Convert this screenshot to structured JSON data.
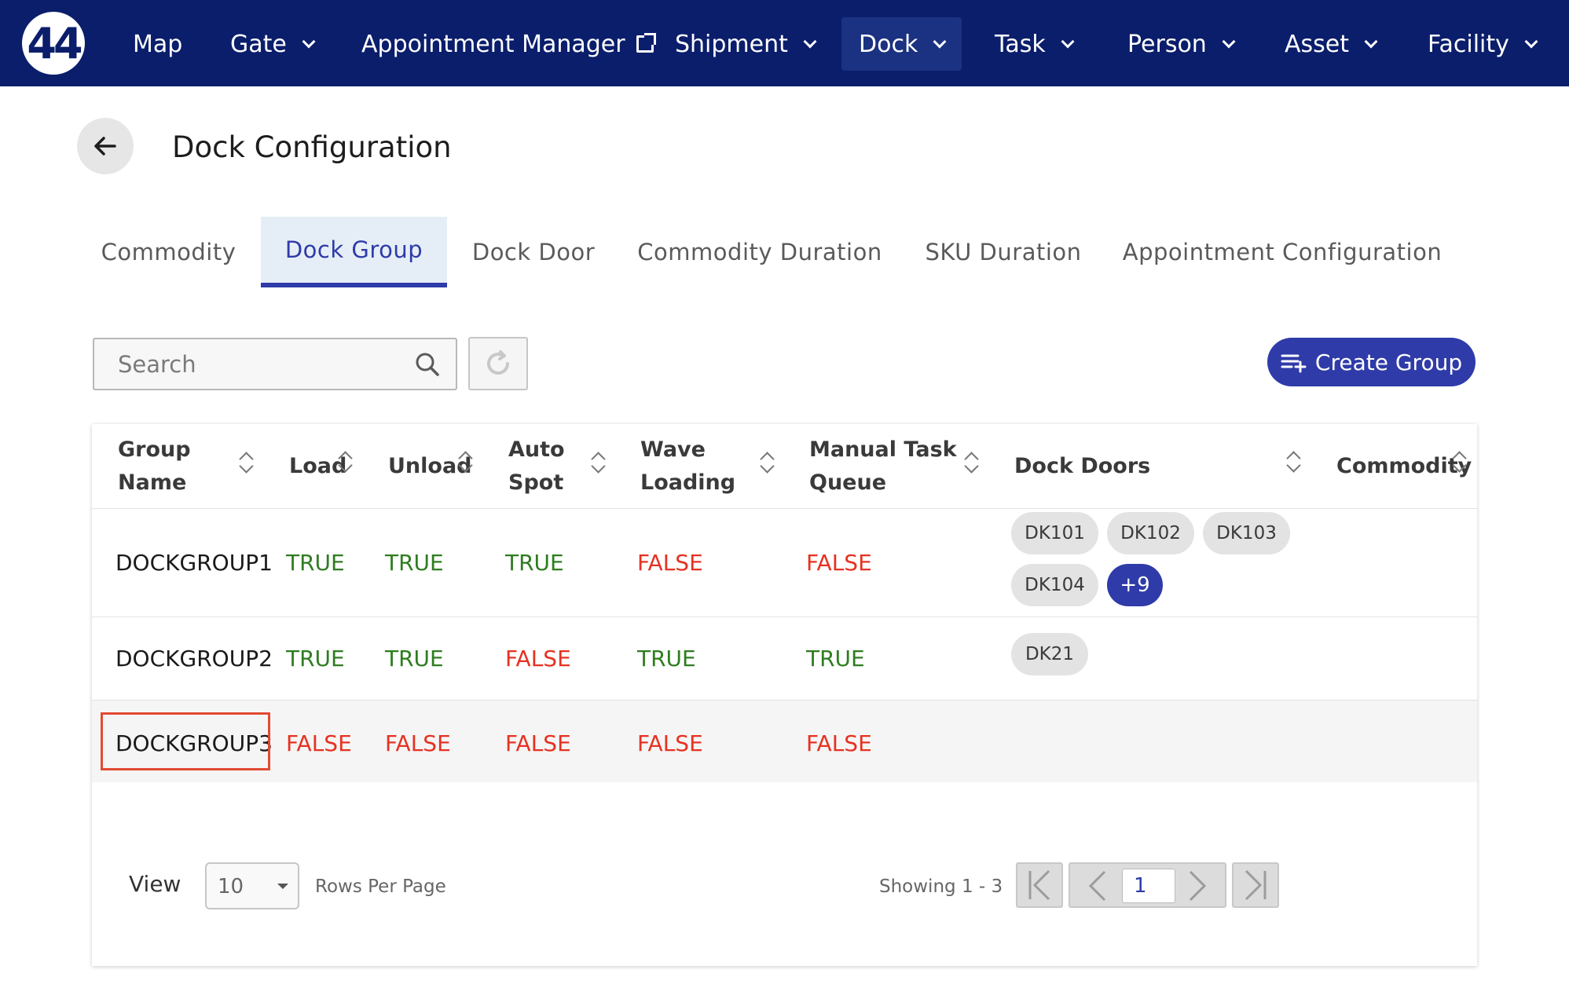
{
  "logo": {
    "text": "44"
  },
  "nav": {
    "map": "Map",
    "gate": "Gate",
    "appointment_manager": "Appointment Manager",
    "shipment": "Shipment",
    "dock": "Dock",
    "task": "Task",
    "person": "Person",
    "asset": "Asset",
    "facility": "Facility"
  },
  "header": {
    "title": "Dock Configuration"
  },
  "tabs": {
    "commodity": "Commodity",
    "dock_group": "Dock Group",
    "dock_door": "Dock Door",
    "commodity_duration": "Commodity Duration",
    "sku_duration": "SKU Duration",
    "appointment_configuration": "Appointment Configuration"
  },
  "search": {
    "placeholder": "Search"
  },
  "toolbar": {
    "create_group": "Create Group"
  },
  "table": {
    "headers": {
      "group_name_1": "Group",
      "group_name_2": "Name",
      "load": "Load",
      "unload": "Unload",
      "auto_spot_1": "Auto",
      "auto_spot_2": "Spot",
      "wave_loading_1": "Wave",
      "wave_loading_2": "Loading",
      "manual_task_queue_1": "Manual Task",
      "manual_task_queue_2": "Queue",
      "dock_doors": "Dock Doors",
      "commodity": "Commodity"
    },
    "rows": [
      {
        "name": "DOCKGROUP1",
        "load": "TRUE",
        "unload": "TRUE",
        "auto_spot": "TRUE",
        "wave_loading": "FALSE",
        "manual_task_queue": "FALSE",
        "dock_doors": [
          "DK101",
          "DK102",
          "DK103",
          "DK104"
        ],
        "more": "+9"
      },
      {
        "name": "DOCKGROUP2",
        "load": "TRUE",
        "unload": "TRUE",
        "auto_spot": "FALSE",
        "wave_loading": "TRUE",
        "manual_task_queue": "TRUE",
        "dock_doors": [
          "DK21"
        ]
      },
      {
        "name": "DOCKGROUP3",
        "load": "FALSE",
        "unload": "FALSE",
        "auto_spot": "FALSE",
        "wave_loading": "FALSE",
        "manual_task_queue": "FALSE",
        "dock_doors": []
      }
    ]
  },
  "pagination": {
    "view_label": "View",
    "rows_per_page": "10",
    "rows_per_page_label": "Rows Per Page",
    "showing": "Showing 1 - 3",
    "current_page": "1"
  },
  "colors": {
    "nav_bg": "#0b1e6b",
    "accent": "#2f3ba8",
    "true": "#2e7d1f",
    "false": "#e53222",
    "highlight": "#e14a33"
  }
}
